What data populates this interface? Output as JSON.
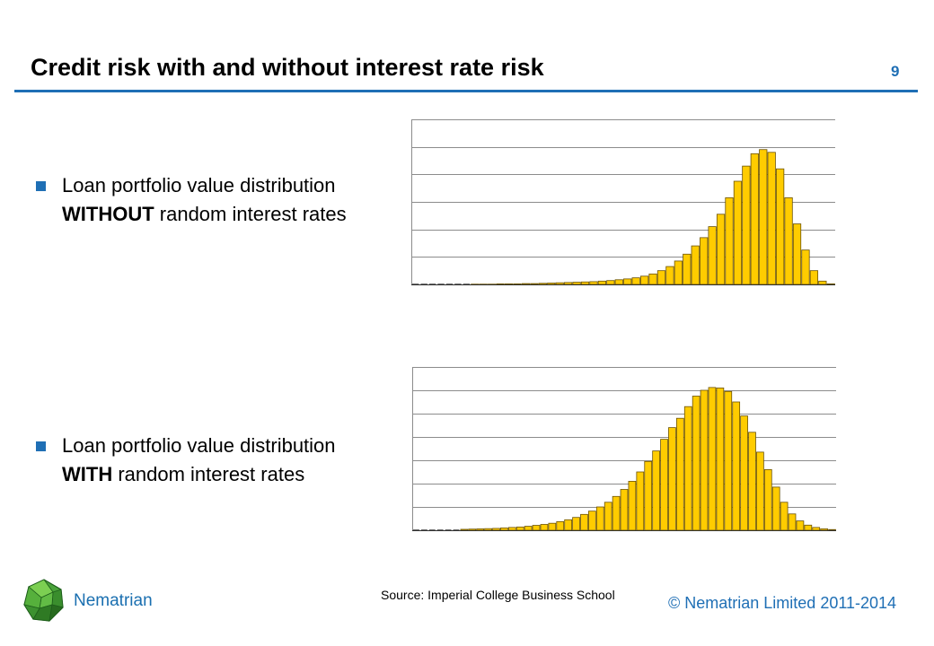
{
  "slide": {
    "title": "Credit risk with and without interest rate risk",
    "page_number": "9"
  },
  "bullets": [
    {
      "text_before": "Loan portfolio value distribution ",
      "bold": "WITHOUT",
      "text_after": " random interest rates"
    },
    {
      "text_before": "Loan portfolio value distribution ",
      "bold": "WITH",
      "text_after": " random interest rates"
    }
  ],
  "footer": {
    "brand": "Nematrian",
    "source": "Source: Imperial College Business School",
    "copyright": "© Nematrian Limited 2011-2014"
  },
  "colors": {
    "accent": "#1f6fb5",
    "bar_fill": "#ffcc00",
    "bar_edge": "#6b5200",
    "grid": "#8c8c8c"
  },
  "chart_data": [
    {
      "type": "bar",
      "title": "",
      "xlabel": "",
      "ylabel": "",
      "ylim": [
        0,
        6
      ],
      "gridlines": 6,
      "values": [
        0,
        0,
        0,
        0,
        0,
        0,
        0,
        0.01,
        0.01,
        0.01,
        0.02,
        0.02,
        0.02,
        0.03,
        0.03,
        0.04,
        0.05,
        0.06,
        0.07,
        0.08,
        0.09,
        0.1,
        0.12,
        0.14,
        0.17,
        0.2,
        0.24,
        0.3,
        0.38,
        0.5,
        0.65,
        0.85,
        1.1,
        1.4,
        1.7,
        2.1,
        2.55,
        3.15,
        3.75,
        4.3,
        4.75,
        4.9,
        4.8,
        4.2,
        3.15,
        2.2,
        1.25,
        0.5,
        0.12,
        0.02
      ]
    },
    {
      "type": "bar",
      "title": "",
      "xlabel": "",
      "ylabel": "",
      "ylim": [
        0,
        7
      ],
      "gridlines": 7,
      "values": [
        0,
        0,
        0,
        0,
        0,
        0,
        0.04,
        0.05,
        0.06,
        0.07,
        0.08,
        0.1,
        0.12,
        0.14,
        0.17,
        0.21,
        0.25,
        0.3,
        0.37,
        0.45,
        0.55,
        0.68,
        0.82,
        1.0,
        1.2,
        1.45,
        1.75,
        2.1,
        2.5,
        2.95,
        3.4,
        3.9,
        4.4,
        4.8,
        5.3,
        5.75,
        6.0,
        6.12,
        6.1,
        5.95,
        5.5,
        4.9,
        4.2,
        3.35,
        2.6,
        1.85,
        1.2,
        0.7,
        0.4,
        0.22,
        0.12,
        0.06,
        0.03
      ]
    }
  ]
}
